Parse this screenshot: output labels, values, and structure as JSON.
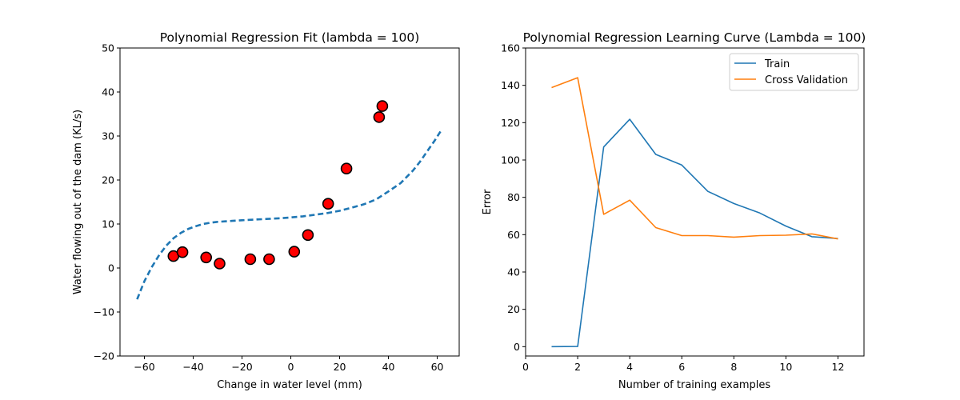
{
  "chart_data": [
    {
      "type": "scatter",
      "title": "Polynomial Regression Fit (lambda = 100)",
      "xlabel": "Change in water level (mm)",
      "ylabel": "Water flowing out of the dam (KL/s)",
      "xlim": [
        -70,
        69
      ],
      "ylim": [
        -20,
        50
      ],
      "xticks": [
        -60,
        -40,
        -20,
        0,
        20,
        40,
        60
      ],
      "xtick_labels": [
        "−60",
        "−40",
        "−20",
        "0",
        "20",
        "40",
        "60"
      ],
      "yticks": [
        -20,
        -10,
        0,
        10,
        20,
        30,
        40,
        50
      ],
      "ytick_labels": [
        "−20",
        "−10",
        "0",
        "10",
        "20",
        "30",
        "40",
        "50"
      ],
      "grid": false,
      "points": {
        "x": [
          -48.1,
          -44.4,
          -34.7,
          -29.2,
          -16.6,
          -8.9,
          1.4,
          7.0,
          15.3,
          22.8,
          36.2,
          37.5
        ],
        "y": [
          2.7,
          3.6,
          2.4,
          1.0,
          2.0,
          2.0,
          3.7,
          7.5,
          14.6,
          22.6,
          34.3,
          36.8
        ],
        "fill": "#ff0000",
        "edge": "#000000"
      },
      "fit_curve": {
        "style": "dashed",
        "color": "#1f77b4",
        "x": [
          -63,
          -60,
          -57,
          -54,
          -51,
          -48,
          -45,
          -42,
          -39,
          -36,
          -33,
          -30,
          -27,
          -24,
          -20,
          -15,
          -10,
          -5,
          0,
          5,
          10,
          15,
          20,
          25,
          30,
          35,
          40,
          45,
          50,
          53,
          56,
          59,
          62
        ],
        "y": [
          -7.1,
          -3.0,
          0.2,
          2.9,
          5.1,
          6.8,
          8.0,
          8.9,
          9.5,
          10.0,
          10.3,
          10.5,
          10.6,
          10.7,
          10.85,
          11.0,
          11.15,
          11.3,
          11.5,
          11.75,
          12.1,
          12.5,
          13.0,
          13.7,
          14.5,
          15.6,
          17.4,
          19.3,
          22.1,
          24.2,
          26.6,
          29.0,
          31.6
        ]
      }
    },
    {
      "type": "line",
      "title": "Polynomial Regression Learning Curve (Lambda = 100)",
      "xlabel": "Number of training examples",
      "ylabel": "Error",
      "xlim": [
        0,
        13
      ],
      "ylim": [
        -5,
        160
      ],
      "xticks": [
        0,
        2,
        4,
        6,
        8,
        10,
        12
      ],
      "xtick_labels": [
        "0",
        "2",
        "4",
        "6",
        "8",
        "10",
        "12"
      ],
      "yticks": [
        0,
        20,
        40,
        60,
        80,
        100,
        120,
        140,
        160
      ],
      "ytick_labels": [
        "0",
        "20",
        "40",
        "60",
        "80",
        "100",
        "120",
        "140",
        "160"
      ],
      "grid": false,
      "legend": "top-right",
      "x": [
        1,
        2,
        3,
        4,
        5,
        6,
        7,
        8,
        9,
        10,
        11,
        12
      ],
      "series": [
        {
          "name": "Train",
          "color": "#1f77b4",
          "values": [
            0.0,
            0.1,
            107.0,
            121.8,
            103.0,
            97.3,
            83.2,
            76.7,
            71.6,
            64.6,
            58.9,
            57.9
          ]
        },
        {
          "name": "Cross Validation",
          "color": "#ff7f0e",
          "values": [
            138.8,
            144.1,
            70.9,
            78.5,
            63.8,
            59.5,
            59.5,
            58.7,
            59.5,
            59.7,
            60.4,
            57.7
          ]
        }
      ]
    }
  ]
}
